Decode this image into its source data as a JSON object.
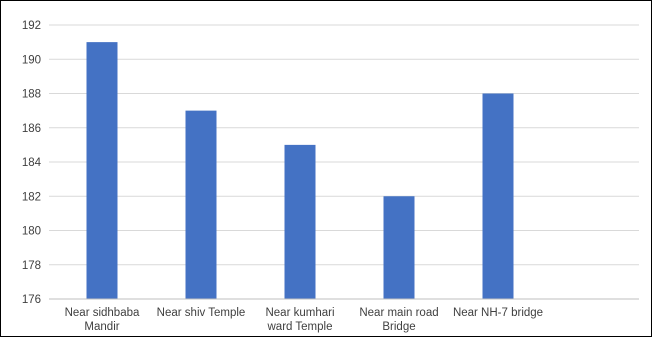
{
  "chart_data": {
    "type": "bar",
    "title": "",
    "xlabel": "",
    "ylabel": "",
    "categories": [
      [
        "Near sidhbaba",
        "Mandir"
      ],
      [
        "Near shiv Temple"
      ],
      [
        "Near kumhari",
        "ward Temple"
      ],
      [
        "Near main road",
        "Bridge"
      ],
      [
        "Near NH-7 bridge"
      ]
    ],
    "values": [
      191,
      187,
      185,
      182,
      188
    ],
    "ylim": [
      176,
      192
    ],
    "yticks": [
      176,
      178,
      180,
      182,
      184,
      186,
      188,
      190,
      192
    ],
    "grid": true,
    "legend": "none",
    "colors": {
      "bar": "#4472C4",
      "grid": "#D9D9D9",
      "axis": "#BFBFBF",
      "text": "#404040"
    }
  }
}
